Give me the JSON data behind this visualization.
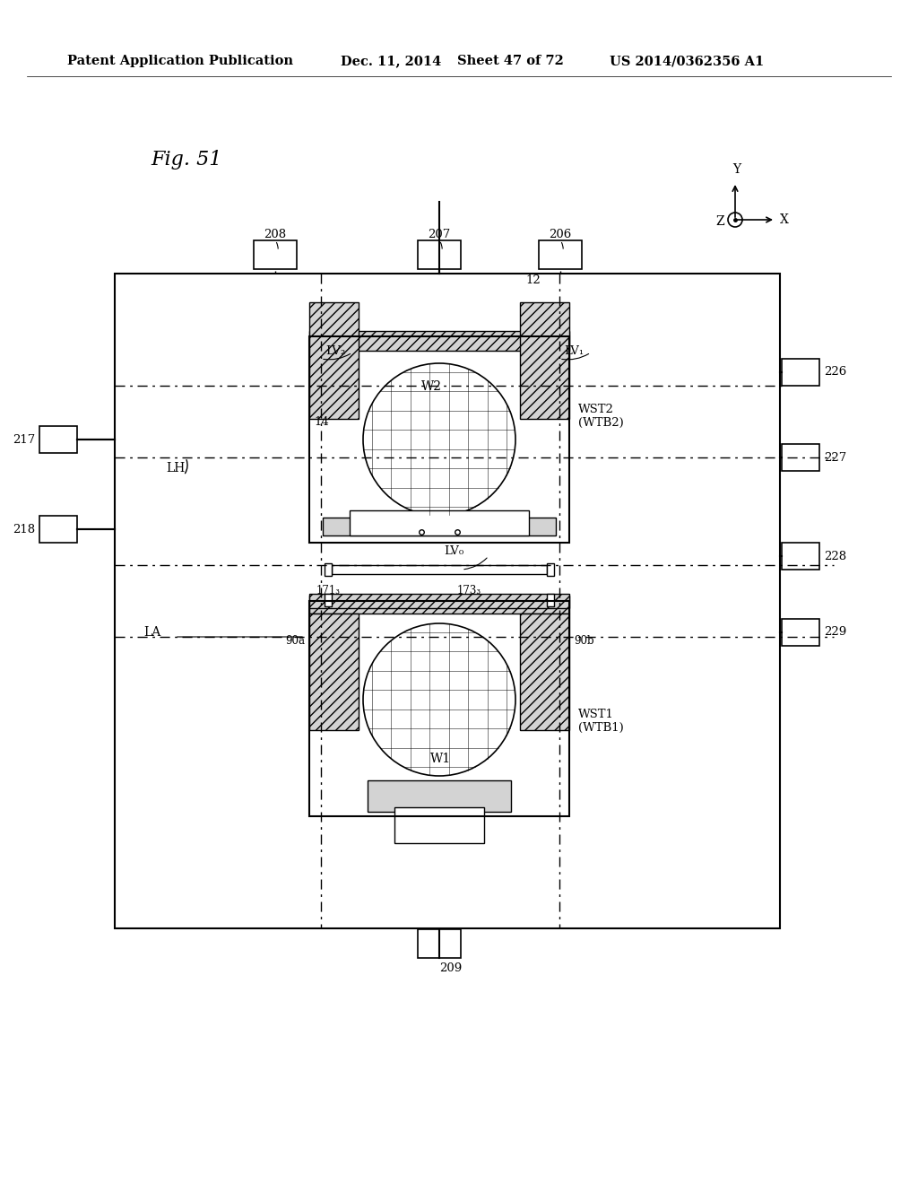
{
  "bg_color": "#ffffff",
  "header_text": "Patent Application Publication",
  "header_date": "Dec. 11, 2014",
  "header_sheet": "Sheet 47 of 72",
  "header_patent": "US 2014/0362356 A1",
  "fig_label": "Fig. 51",
  "title_fontsize": 11,
  "header_fontsize": 10.5
}
